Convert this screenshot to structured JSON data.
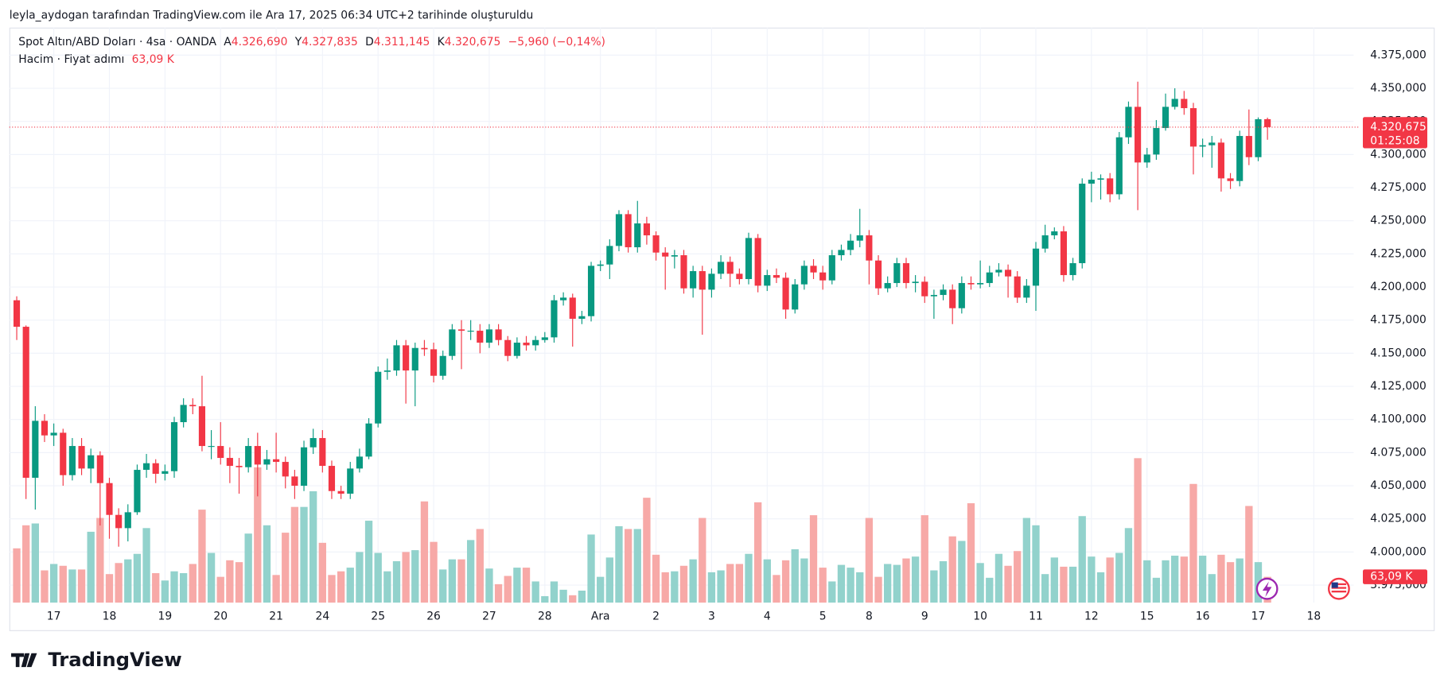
{
  "header": {
    "caption": "leyla_aydogan tarafından TradingView.com ile Ara 17, 2025 06:34 UTC+2 tarihinde oluşturuldu"
  },
  "footer": {
    "brand": "TradingView"
  },
  "chart_data": {
    "type": "candlestick",
    "legend": {
      "symbol": "Spot Altın/ABD Doları · 4sa · OANDA",
      "fields": [
        {
          "key": "A",
          "text": "4.326,690"
        },
        {
          "key": "Y",
          "text": "4.327,835"
        },
        {
          "key": "D",
          "text": "4.311,145"
        },
        {
          "key": "K",
          "text": "4.320,675"
        }
      ],
      "change": "−5,960 (−0,14%)",
      "volume_name": "Hacim · Fiyat adımı"
    },
    "last_price_label": "4.320,675",
    "countdown": "01:25:08",
    "volume_label": "63,09 K",
    "up_color": "#089981",
    "down_color": "#f23645",
    "volume_up_color": "#92d2cc",
    "volume_down_color": "#f7a9a7",
    "grid": true,
    "ylim": [
      3961.8,
      4395.8
    ],
    "yticks": [
      {
        "value": 3975,
        "label": "3.975,000"
      },
      {
        "value": 4000,
        "label": "4.000,000"
      },
      {
        "value": 4025,
        "label": "4.025,000"
      },
      {
        "value": 4050,
        "label": "4.050,000"
      },
      {
        "value": 4075,
        "label": "4.075,000"
      },
      {
        "value": 4100,
        "label": "4.100,000"
      },
      {
        "value": 4125,
        "label": "4.125,000"
      },
      {
        "value": 4150,
        "label": "4.150,000"
      },
      {
        "value": 4175,
        "label": "4.175,000"
      },
      {
        "value": 4200,
        "label": "4.200,000"
      },
      {
        "value": 4225,
        "label": "4.225,000"
      },
      {
        "value": 4250,
        "label": "4.250,000"
      },
      {
        "value": 4275,
        "label": "4.275,000"
      },
      {
        "value": 4300,
        "label": "4.300,000"
      },
      {
        "value": 4325,
        "label": "4.325,000"
      },
      {
        "value": 4350,
        "label": "4.350,000"
      },
      {
        "value": 4375,
        "label": "4.375,000"
      }
    ],
    "xlim": [
      -0.8,
      144.3
    ],
    "xticks": [
      {
        "value": 4,
        "label": "17"
      },
      {
        "value": 10,
        "label": "18"
      },
      {
        "value": 16,
        "label": "19"
      },
      {
        "value": 22,
        "label": "20"
      },
      {
        "value": 28,
        "label": "21"
      },
      {
        "value": 33,
        "label": "24"
      },
      {
        "value": 39,
        "label": "25"
      },
      {
        "value": 45,
        "label": "26"
      },
      {
        "value": 51,
        "label": "27"
      },
      {
        "value": 57,
        "label": "28"
      },
      {
        "value": 63,
        "label": "Ara"
      },
      {
        "value": 69,
        "label": "2"
      },
      {
        "value": 75,
        "label": "3"
      },
      {
        "value": 81,
        "label": "4"
      },
      {
        "value": 87,
        "label": "5"
      },
      {
        "value": 92,
        "label": "8"
      },
      {
        "value": 98,
        "label": "9"
      },
      {
        "value": 104,
        "label": "10"
      },
      {
        "value": 110,
        "label": "11"
      },
      {
        "value": 116,
        "label": "12"
      },
      {
        "value": 122,
        "label": "15"
      },
      {
        "value": 128,
        "label": "16"
      },
      {
        "value": 134,
        "label": "17"
      },
      {
        "value": 140,
        "label": "18"
      }
    ],
    "volume_lim": [
      0,
      1408000
    ],
    "ohlc": [
      [
        4190,
        4193,
        4160,
        4170
      ],
      [
        4170,
        4171,
        4040,
        4056
      ],
      [
        4056,
        4110,
        4032,
        4099
      ],
      [
        4099,
        4104,
        4083,
        4088
      ],
      [
        4088,
        4097,
        4080,
        4090
      ],
      [
        4090,
        4093,
        4050,
        4058
      ],
      [
        4058,
        4086,
        4054,
        4080
      ],
      [
        4080,
        4086,
        4058,
        4063
      ],
      [
        4063,
        4078,
        4052,
        4073
      ],
      [
        4073,
        4076,
        4020,
        4052
      ],
      [
        4052,
        4056,
        4010,
        4028
      ],
      [
        4028,
        4033,
        4004,
        4018
      ],
      [
        4018,
        4036,
        4008,
        4030
      ],
      [
        4030,
        4066,
        4028,
        4062
      ],
      [
        4062,
        4074,
        4056,
        4067
      ],
      [
        4067,
        4070,
        4052,
        4059
      ],
      [
        4059,
        4066,
        4054,
        4061
      ],
      [
        4061,
        4102,
        4056,
        4098
      ],
      [
        4098,
        4116,
        4094,
        4111
      ],
      [
        4111,
        4116,
        4104,
        4110
      ],
      [
        4110,
        4133,
        4076,
        4080
      ],
      [
        4080,
        4092,
        4070,
        4080
      ],
      [
        4080,
        4098,
        4066,
        4071
      ],
      [
        4071,
        4079,
        4052,
        4065
      ],
      [
        4065,
        4071,
        4044,
        4064
      ],
      [
        4064,
        4086,
        4060,
        4080
      ],
      [
        4080,
        4090,
        4042,
        4066
      ],
      [
        4066,
        4077,
        4062,
        4070
      ],
      [
        4070,
        4090,
        4060,
        4068
      ],
      [
        4068,
        4072,
        4048,
        4057
      ],
      [
        4057,
        4062,
        4040,
        4050
      ],
      [
        4050,
        4084,
        4046,
        4079
      ],
      [
        4079,
        4093,
        4074,
        4086
      ],
      [
        4086,
        4092,
        4060,
        4065
      ],
      [
        4065,
        4069,
        4040,
        4046
      ],
      [
        4046,
        4050,
        4040,
        4044
      ],
      [
        4044,
        4068,
        4040,
        4063
      ],
      [
        4063,
        4078,
        4060,
        4072
      ],
      [
        4072,
        4101,
        4070,
        4097
      ],
      [
        4097,
        4140,
        4094,
        4136
      ],
      [
        4136,
        4146,
        4130,
        4137
      ],
      [
        4137,
        4160,
        4133,
        4156
      ],
      [
        4156,
        4160,
        4112,
        4137
      ],
      [
        4137,
        4158,
        4110,
        4154
      ],
      [
        4154,
        4160,
        4148,
        4153
      ],
      [
        4153,
        4158,
        4128,
        4133
      ],
      [
        4133,
        4152,
        4130,
        4148
      ],
      [
        4148,
        4172,
        4145,
        4168
      ],
      [
        4168,
        4175,
        4138,
        4167
      ],
      [
        4167,
        4175,
        4160,
        4167
      ],
      [
        4167,
        4172,
        4150,
        4158
      ],
      [
        4158,
        4172,
        4154,
        4168
      ],
      [
        4168,
        4172,
        4156,
        4160
      ],
      [
        4160,
        4163,
        4144,
        4148
      ],
      [
        4148,
        4162,
        4146,
        4158
      ],
      [
        4158,
        4163,
        4152,
        4156
      ],
      [
        4156,
        4163,
        4152,
        4160
      ],
      [
        4160,
        4166,
        4158,
        4162
      ],
      [
        4162,
        4194,
        4158,
        4190
      ],
      [
        4190,
        4196,
        4186,
        4192
      ],
      [
        4192,
        4195,
        4155,
        4176
      ],
      [
        4176,
        4182,
        4172,
        4178
      ],
      [
        4178,
        4219,
        4174,
        4216
      ],
      [
        4216,
        4220,
        4212,
        4217
      ],
      [
        4217,
        4236,
        4206,
        4231
      ],
      [
        4231,
        4258,
        4227,
        4255
      ],
      [
        4255,
        4258,
        4226,
        4230
      ],
      [
        4230,
        4265,
        4226,
        4248
      ],
      [
        4248,
        4253,
        4232,
        4239
      ],
      [
        4239,
        4242,
        4220,
        4226
      ],
      [
        4226,
        4230,
        4198,
        4223
      ],
      [
        4223,
        4228,
        4214,
        4224
      ],
      [
        4224,
        4228,
        4195,
        4199
      ],
      [
        4199,
        4216,
        4192,
        4212
      ],
      [
        4212,
        4216,
        4164,
        4198
      ],
      [
        4198,
        4214,
        4192,
        4210
      ],
      [
        4210,
        4224,
        4206,
        4219
      ],
      [
        4219,
        4223,
        4200,
        4210
      ],
      [
        4210,
        4214,
        4202,
        4206
      ],
      [
        4206,
        4241,
        4202,
        4237
      ],
      [
        4237,
        4240,
        4196,
        4201
      ],
      [
        4201,
        4213,
        4197,
        4209
      ],
      [
        4209,
        4214,
        4203,
        4207
      ],
      [
        4207,
        4211,
        4176,
        4183
      ],
      [
        4183,
        4206,
        4180,
        4202
      ],
      [
        4202,
        4220,
        4198,
        4216
      ],
      [
        4216,
        4221,
        4206,
        4211
      ],
      [
        4211,
        4216,
        4198,
        4205
      ],
      [
        4205,
        4228,
        4202,
        4224
      ],
      [
        4224,
        4232,
        4220,
        4228
      ],
      [
        4228,
        4240,
        4224,
        4235
      ],
      [
        4235,
        4259,
        4230,
        4239
      ],
      [
        4239,
        4243,
        4202,
        4220
      ],
      [
        4220,
        4224,
        4194,
        4199
      ],
      [
        4199,
        4208,
        4196,
        4203
      ],
      [
        4203,
        4222,
        4200,
        4218
      ],
      [
        4218,
        4222,
        4199,
        4203
      ],
      [
        4203,
        4209,
        4196,
        4204
      ],
      [
        4204,
        4208,
        4188,
        4193
      ],
      [
        4193,
        4198,
        4176,
        4194
      ],
      [
        4194,
        4202,
        4190,
        4198
      ],
      [
        4198,
        4202,
        4172,
        4184
      ],
      [
        4184,
        4208,
        4180,
        4203
      ],
      [
        4203,
        4208,
        4198,
        4202
      ],
      [
        4202,
        4220,
        4199,
        4203
      ],
      [
        4203,
        4216,
        4200,
        4211
      ],
      [
        4211,
        4218,
        4208,
        4213
      ],
      [
        4213,
        4217,
        4192,
        4208
      ],
      [
        4208,
        4212,
        4188,
        4192
      ],
      [
        4192,
        4206,
        4188,
        4201
      ],
      [
        4201,
        4234,
        4182,
        4229
      ],
      [
        4229,
        4247,
        4226,
        4239
      ],
      [
        4239,
        4245,
        4236,
        4242
      ],
      [
        4242,
        4246,
        4204,
        4209
      ],
      [
        4209,
        4222,
        4205,
        4218
      ],
      [
        4218,
        4282,
        4214,
        4278
      ],
      [
        4278,
        4287,
        4264,
        4281
      ],
      [
        4281,
        4285,
        4266,
        4282
      ],
      [
        4282,
        4286,
        4264,
        4270
      ],
      [
        4270,
        4317,
        4266,
        4313
      ],
      [
        4313,
        4340,
        4308,
        4336
      ],
      [
        4336,
        4355,
        4258,
        4294
      ],
      [
        4294,
        4305,
        4290,
        4300
      ],
      [
        4300,
        4326,
        4296,
        4320
      ],
      [
        4320,
        4346,
        4318,
        4336
      ],
      [
        4336,
        4350,
        4334,
        4342
      ],
      [
        4342,
        4348,
        4330,
        4335
      ],
      [
        4335,
        4339,
        4285,
        4306
      ],
      [
        4306,
        4312,
        4298,
        4307
      ],
      [
        4307,
        4314,
        4290,
        4309
      ],
      [
        4309,
        4312,
        4272,
        4282
      ],
      [
        4282,
        4286,
        4274,
        4280
      ],
      [
        4280,
        4318,
        4276,
        4314
      ],
      [
        4314,
        4334,
        4292,
        4298
      ],
      [
        4298,
        4328,
        4295,
        4326.635
      ],
      [
        4326.69,
        4327.835,
        4311.145,
        4320.675
      ]
    ],
    "volume": [
      132900,
      189300,
      193800,
      78900,
      94600,
      90100,
      81100,
      81100,
      173500,
      207300,
      69800,
      96900,
      105900,
      119400,
      182500,
      72100,
      54100,
      76600,
      72100,
      94600,
      227600,
      121700,
      63100,
      103600,
      99100,
      169000,
      331200,
      189300,
      67600,
      171200,
      234300,
      234300,
      272600,
      146400,
      67600,
      76600,
      85600,
      123900,
      200500,
      121700,
      76600,
      101400,
      123900,
      128400,
      247800,
      148700,
      81100,
      105900,
      105900,
      153200,
      180200,
      83400,
      45100,
      65300,
      85600,
      85600,
      51800,
      15800,
      51800,
      31500,
      18000,
      29300,
      166700,
      63100,
      110400,
      187000,
      180200,
      180200,
      256800,
      117200,
      74300,
      76600,
      90100,
      105900,
      207300,
      74300,
      78900,
      94600,
      94600,
      119400,
      245600,
      105900,
      67600,
      103600,
      130700,
      108100,
      214000,
      85600,
      51800,
      92400,
      85600,
      74300,
      207300,
      63100,
      94600,
      92400,
      108100,
      112700,
      214000,
      78900,
      101400,
      162200,
      151000,
      243300,
      96900,
      60800,
      119400,
      90100,
      126200,
      207300,
      189300,
      69800,
      110400,
      87900,
      87900,
      211800,
      112700,
      74300,
      110400,
      121700,
      182500,
      353700,
      103600,
      60800,
      103600,
      114900,
      112700,
      290600,
      114900,
      69800,
      117200,
      99100,
      108100,
      236600,
      99100,
      63090
    ]
  }
}
